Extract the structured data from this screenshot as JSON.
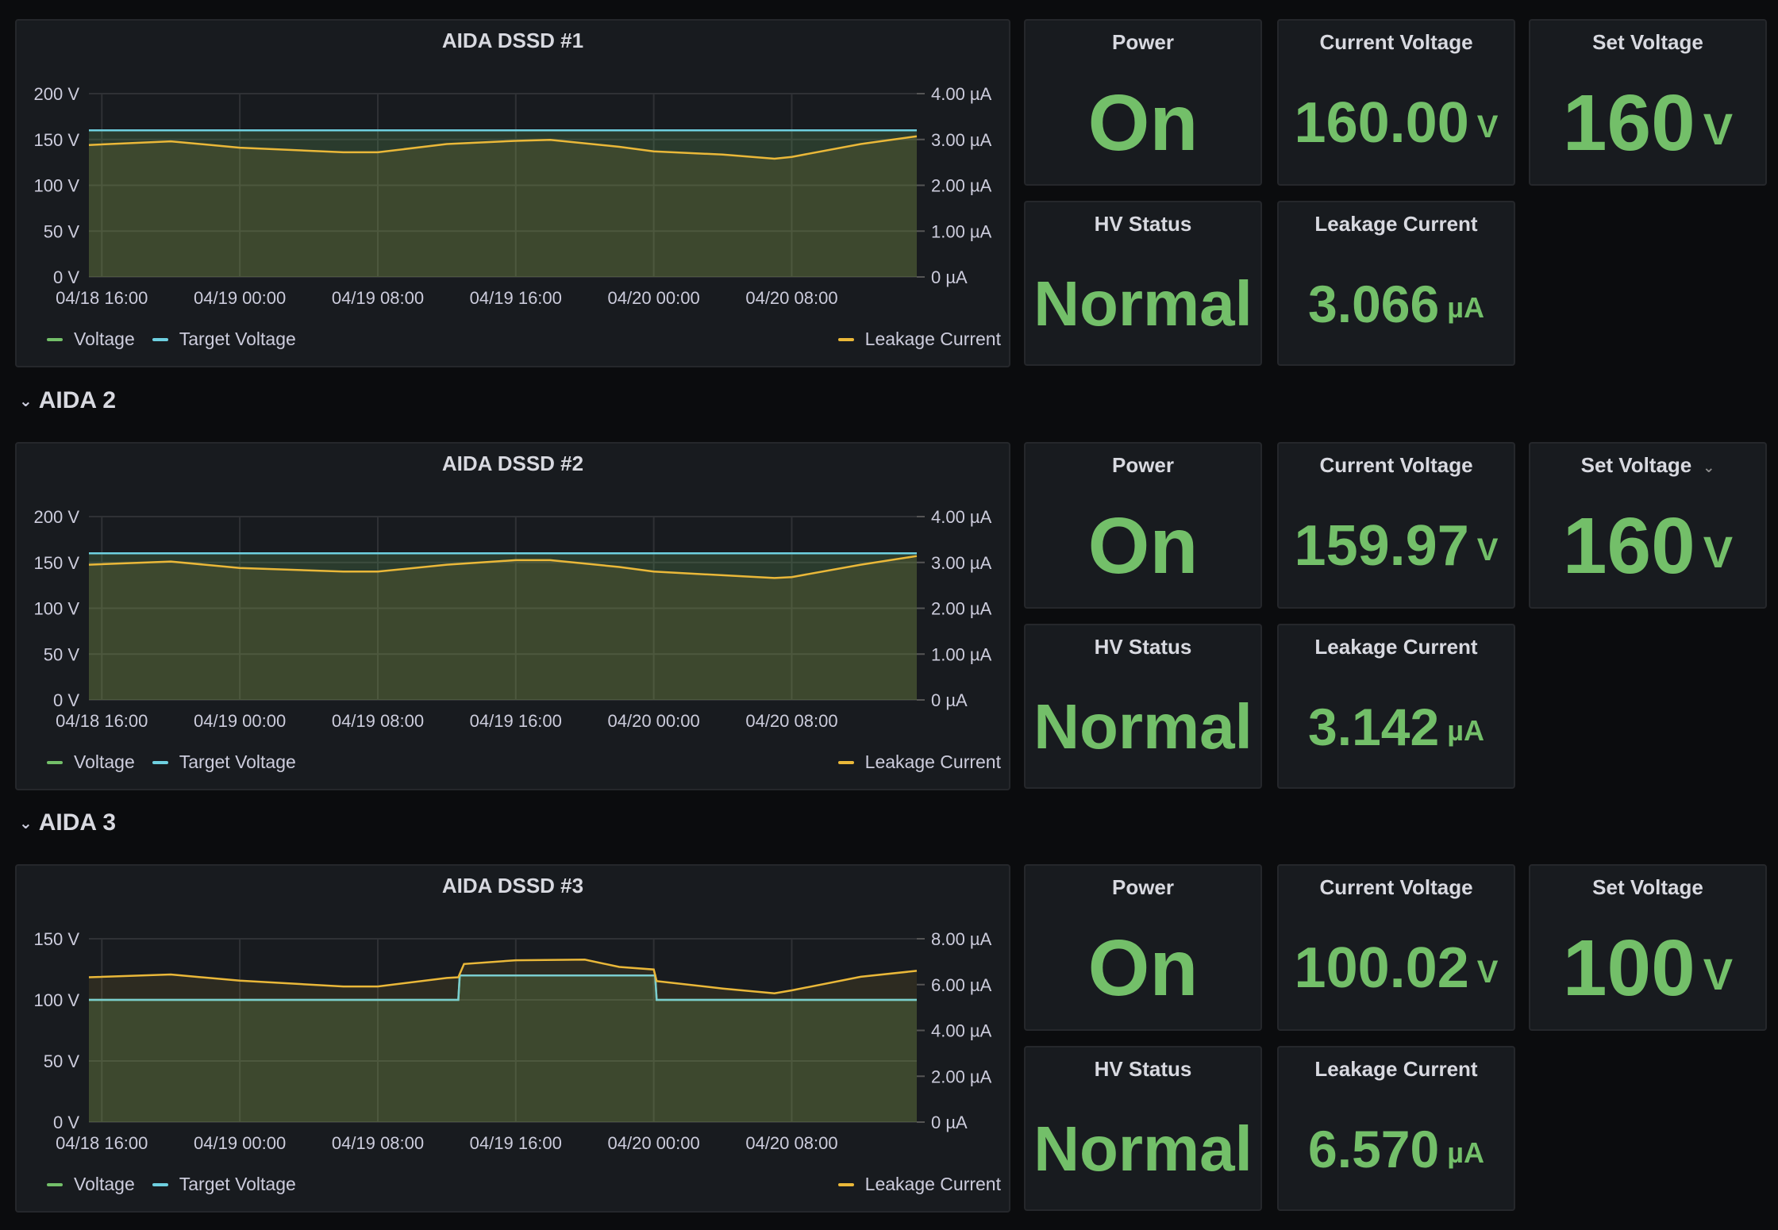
{
  "colors": {
    "background": "#0b0c0e",
    "panel": "#181b1f",
    "voltage": "#73bf69",
    "target": "#6ed0e0",
    "leakage": "#eab839",
    "value": "#73bf69"
  },
  "sections": [
    {
      "header": null,
      "chart_title": "AIDA DSSD #1",
      "legend": {
        "voltage": "Voltage",
        "target": "Target Voltage",
        "leakage": "Leakage Current"
      },
      "stats": {
        "power": {
          "title": "Power",
          "value": "On"
        },
        "current_voltage": {
          "title": "Current Voltage",
          "value": "160.00",
          "unit": "V"
        },
        "set_voltage": {
          "title": "Set Voltage",
          "value": "160",
          "unit": "V"
        },
        "hv_status": {
          "title": "HV Status",
          "value": "Normal"
        },
        "leakage_current": {
          "title": "Leakage Current",
          "value": "3.066",
          "unit": "µA"
        }
      }
    },
    {
      "header": "AIDA 2",
      "chart_title": "AIDA DSSD #2",
      "legend": {
        "voltage": "Voltage",
        "target": "Target Voltage",
        "leakage": "Leakage Current"
      },
      "stats": {
        "power": {
          "title": "Power",
          "value": "On"
        },
        "current_voltage": {
          "title": "Current Voltage",
          "value": "159.97",
          "unit": "V"
        },
        "set_voltage": {
          "title": "Set Voltage",
          "value": "160",
          "unit": "V",
          "menu": "⌄"
        },
        "hv_status": {
          "title": "HV Status",
          "value": "Normal"
        },
        "leakage_current": {
          "title": "Leakage Current",
          "value": "3.142",
          "unit": "µA"
        }
      }
    },
    {
      "header": "AIDA 3",
      "chart_title": "AIDA DSSD #3",
      "legend": {
        "voltage": "Voltage",
        "target": "Target Voltage",
        "leakage": "Leakage Current"
      },
      "stats": {
        "power": {
          "title": "Power",
          "value": "On"
        },
        "current_voltage": {
          "title": "Current Voltage",
          "value": "100.02",
          "unit": "V"
        },
        "set_voltage": {
          "title": "Set Voltage",
          "value": "100",
          "unit": "V"
        },
        "hv_status": {
          "title": "HV Status",
          "value": "Normal"
        },
        "leakage_current": {
          "title": "Leakage Current",
          "value": "6.570",
          "unit": "µA"
        }
      }
    }
  ],
  "chart_data": [
    {
      "type": "line",
      "title": "AIDA DSSD #1",
      "x_range": [
        "04/18 15:15",
        "04/20 15:15"
      ],
      "x_ticks": [
        "04/18 16:00",
        "04/19 00:00",
        "04/19 08:00",
        "04/19 16:00",
        "04/20 00:00",
        "04/20 08:00"
      ],
      "y_left": {
        "ticks": [
          "0 V",
          "50 V",
          "100 V",
          "150 V",
          "200 V"
        ],
        "values": [
          0,
          50,
          100,
          150,
          200
        ],
        "range": [
          0,
          200
        ]
      },
      "y_right": {
        "ticks": [
          "0 µA",
          "1.00 µA",
          "2.00 µA",
          "3.00 µA",
          "4.00 µA"
        ],
        "values": [
          0,
          1,
          2,
          3,
          4
        ],
        "range": [
          0,
          4
        ]
      },
      "series": [
        {
          "name": "Voltage",
          "axis": "left",
          "x": [
            "04/18 15:15",
            "04/20 15:15"
          ],
          "y": [
            160,
            160
          ]
        },
        {
          "name": "Target Voltage",
          "axis": "left",
          "x": [
            "04/18 15:15",
            "04/20 15:15"
          ],
          "y": [
            160,
            160
          ]
        },
        {
          "name": "Leakage Current",
          "axis": "right",
          "x": [
            "04/18 15:15",
            "04/18 20:00",
            "04/19 00:00",
            "04/19 06:00",
            "04/19 08:00",
            "04/19 12:00",
            "04/19 16:00",
            "04/19 18:00",
            "04/19 22:00",
            "04/20 00:00",
            "04/20 04:00",
            "04/20 07:00",
            "04/20 08:00",
            "04/20 12:00",
            "04/20 15:15"
          ],
          "y": [
            2.88,
            2.96,
            2.82,
            2.72,
            2.72,
            2.9,
            2.97,
            2.99,
            2.84,
            2.74,
            2.67,
            2.58,
            2.62,
            2.9,
            3.07
          ]
        }
      ]
    },
    {
      "type": "line",
      "title": "AIDA DSSD #2",
      "x_range": [
        "04/18 15:15",
        "04/20 15:15"
      ],
      "x_ticks": [
        "04/18 16:00",
        "04/19 00:00",
        "04/19 08:00",
        "04/19 16:00",
        "04/20 00:00",
        "04/20 08:00"
      ],
      "y_left": {
        "ticks": [
          "0 V",
          "50 V",
          "100 V",
          "150 V",
          "200 V"
        ],
        "values": [
          0,
          50,
          100,
          150,
          200
        ],
        "range": [
          0,
          200
        ]
      },
      "y_right": {
        "ticks": [
          "0 µA",
          "1.00 µA",
          "2.00 µA",
          "3.00 µA",
          "4.00 µA"
        ],
        "values": [
          0,
          1,
          2,
          3,
          4
        ],
        "range": [
          0,
          4
        ]
      },
      "series": [
        {
          "name": "Voltage",
          "axis": "left",
          "x": [
            "04/18 15:15",
            "04/20 15:15"
          ],
          "y": [
            160,
            160
          ]
        },
        {
          "name": "Target Voltage",
          "axis": "left",
          "x": [
            "04/18 15:15",
            "04/20 15:15"
          ],
          "y": [
            160,
            160
          ]
        },
        {
          "name": "Leakage Current",
          "axis": "right",
          "x": [
            "04/18 15:15",
            "04/18 20:00",
            "04/19 00:00",
            "04/19 06:00",
            "04/19 08:00",
            "04/19 12:00",
            "04/19 16:00",
            "04/19 18:00",
            "04/19 22:00",
            "04/20 00:00",
            "04/20 04:00",
            "04/20 07:00",
            "04/20 08:00",
            "04/20 12:00",
            "04/20 15:15"
          ],
          "y": [
            2.95,
            3.02,
            2.88,
            2.8,
            2.8,
            2.95,
            3.05,
            3.05,
            2.9,
            2.8,
            2.72,
            2.66,
            2.68,
            2.95,
            3.14
          ]
        }
      ]
    },
    {
      "type": "line",
      "title": "AIDA DSSD #3",
      "x_range": [
        "04/18 15:15",
        "04/20 15:15"
      ],
      "x_ticks": [
        "04/18 16:00",
        "04/19 00:00",
        "04/19 08:00",
        "04/19 16:00",
        "04/20 00:00",
        "04/20 08:00"
      ],
      "y_left": {
        "ticks": [
          "0 V",
          "50 V",
          "100 V",
          "150 V"
        ],
        "values": [
          0,
          50,
          100,
          150
        ],
        "range": [
          0,
          150
        ]
      },
      "y_right": {
        "ticks": [
          "0 µA",
          "2.00 µA",
          "4.00 µA",
          "6.00 µA",
          "8.00 µA"
        ],
        "values": [
          0,
          2,
          4,
          6,
          8
        ],
        "range": [
          0,
          8
        ]
      },
      "series": [
        {
          "name": "Voltage",
          "axis": "left",
          "x": [
            "04/18 15:15",
            "04/19 12:40",
            "04/19 12:45",
            "04/20 00:05",
            "04/20 00:10",
            "04/20 15:15"
          ],
          "y": [
            100,
            100,
            120,
            120,
            100,
            100
          ]
        },
        {
          "name": "Target Voltage",
          "axis": "left",
          "x": [
            "04/18 15:15",
            "04/19 12:40",
            "04/19 12:45",
            "04/20 00:05",
            "04/20 00:10",
            "04/20 15:15"
          ],
          "y": [
            100,
            100,
            120,
            120,
            100,
            100
          ]
        },
        {
          "name": "Leakage Current",
          "axis": "right",
          "x": [
            "04/18 15:15",
            "04/18 20:00",
            "04/19 00:00",
            "04/19 06:00",
            "04/19 08:00",
            "04/19 12:00",
            "04/19 12:40",
            "04/19 13:00",
            "04/19 16:00",
            "04/19 20:00",
            "04/19 22:00",
            "04/20 00:00",
            "04/20 00:10",
            "04/20 04:00",
            "04/20 07:00",
            "04/20 08:00",
            "04/20 12:00",
            "04/20 15:15"
          ],
          "y": [
            6.32,
            6.44,
            6.17,
            5.92,
            5.92,
            6.29,
            6.32,
            6.9,
            7.06,
            7.09,
            6.77,
            6.66,
            6.15,
            5.83,
            5.62,
            5.75,
            6.34,
            6.6
          ]
        }
      ]
    }
  ]
}
